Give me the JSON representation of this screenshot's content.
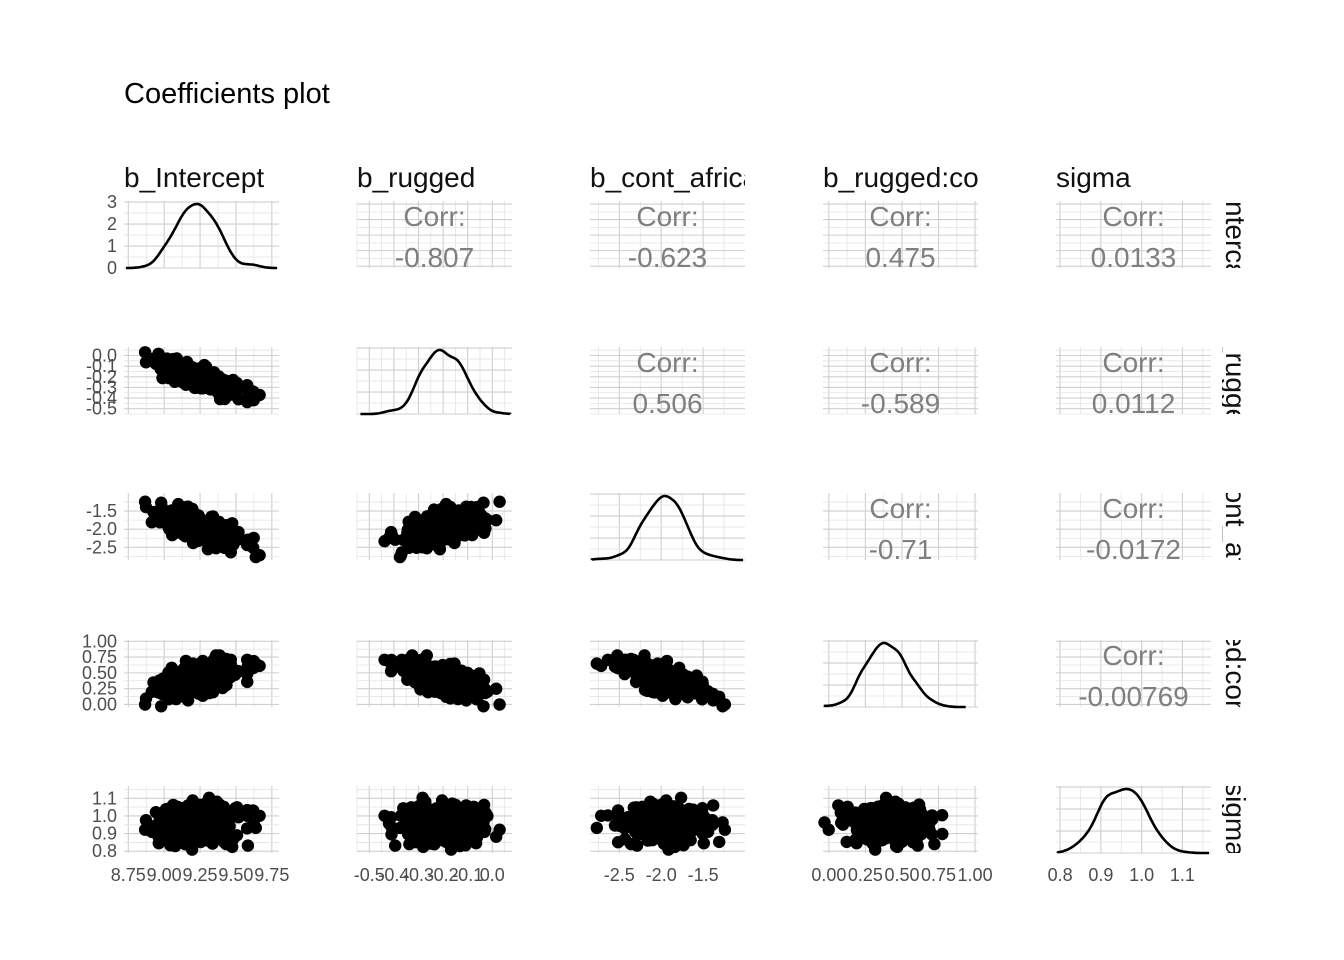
{
  "chart_data": {
    "type": "scatter",
    "title": "Coefficients plot",
    "variables": [
      {
        "name": "b_Intercept",
        "strip_top": "b_Intercept",
        "strip_right": "Intercε",
        "mean": 9.23,
        "sd": 0.135,
        "range": [
          8.72,
          9.8
        ],
        "breaks": [
          8.75,
          9.0,
          9.25,
          9.5,
          9.75
        ],
        "labels": [
          "8.75",
          "9.00",
          "9.25",
          "9.50",
          "9.75"
        ]
      },
      {
        "name": "b_rugged",
        "strip_top": "b_rugged",
        "strip_right": "_rugge",
        "mean": -0.2,
        "sd": 0.08,
        "range": [
          -0.55,
          0.08
        ],
        "breaks": [
          -0.5,
          -0.4,
          -0.3,
          -0.2,
          -0.1,
          0.0
        ],
        "labels": [
          "-0.5",
          "-0.4",
          "-0.3",
          "-0.2",
          "-0.1",
          "0.0"
        ]
      },
      {
        "name": "b_cont_africa",
        "strip_top": "b_cont_africa",
        "strip_right": "ont_af",
        "mean": -1.95,
        "sd": 0.23,
        "range": [
          -2.85,
          -1.0
        ],
        "breaks": [
          -2.5,
          -2.0,
          -1.5
        ],
        "labels": [
          "-2.5",
          "-2.0",
          "-1.5"
        ]
      },
      {
        "name": "b_rugged:cont_africa",
        "strip_top": "b_rugged:con",
        "strip_right": "ed:con",
        "mean": 0.39,
        "sd": 0.13,
        "range": [
          -0.04,
          1.02
        ],
        "breaks": [
          0.0,
          0.25,
          0.5,
          0.75,
          1.0
        ],
        "labels": [
          "0.00",
          "0.25",
          "0.50",
          "0.75",
          "1.00"
        ]
      },
      {
        "name": "sigma",
        "strip_top": "sigma",
        "strip_right": "sigma",
        "mean": 0.95,
        "sd": 0.055,
        "range": [
          0.79,
          1.17
        ],
        "breaks": [
          0.8,
          0.9,
          1.0,
          1.1
        ],
        "labels": [
          "0.8",
          "0.9",
          "1.0",
          "1.1"
        ]
      }
    ],
    "density_ticks": {
      "breaks": [
        0,
        1,
        2,
        3
      ],
      "labels": [
        "0",
        "1",
        "2",
        "3"
      ]
    },
    "correlations": [
      {
        "row": 0,
        "col": 1,
        "label": "Corr:",
        "value": "-0.807"
      },
      {
        "row": 0,
        "col": 2,
        "label": "Corr:",
        "value": "-0.623"
      },
      {
        "row": 0,
        "col": 3,
        "label": "Corr:",
        "value": "0.475"
      },
      {
        "row": 0,
        "col": 4,
        "label": "Corr:",
        "value": "0.0133"
      },
      {
        "row": 1,
        "col": 2,
        "label": "Corr:",
        "value": "0.506"
      },
      {
        "row": 1,
        "col": 3,
        "label": "Corr:",
        "value": "-0.589"
      },
      {
        "row": 1,
        "col": 4,
        "label": "Corr:",
        "value": "0.0112"
      },
      {
        "row": 2,
        "col": 3,
        "label": "Corr:",
        "value": "-0.71"
      },
      {
        "row": 2,
        "col": 4,
        "label": "Corr:",
        "value": "-0.0172"
      },
      {
        "row": 3,
        "col": 4,
        "label": "Corr:",
        "value": "-0.00769"
      }
    ],
    "corr_matrix": [
      [
        1,
        -0.807,
        -0.623,
        0.475,
        0.0133
      ],
      [
        -0.807,
        1,
        0.506,
        -0.589,
        0.0112
      ],
      [
        -0.623,
        0.506,
        1,
        -0.71,
        -0.0172
      ],
      [
        0.475,
        -0.589,
        -0.71,
        1,
        -0.00769
      ],
      [
        0.0133,
        0.0112,
        -0.0172,
        -0.00769,
        1
      ]
    ],
    "grid": true,
    "point_color": "#000000",
    "corr_text_color": "#7f7f7f"
  }
}
